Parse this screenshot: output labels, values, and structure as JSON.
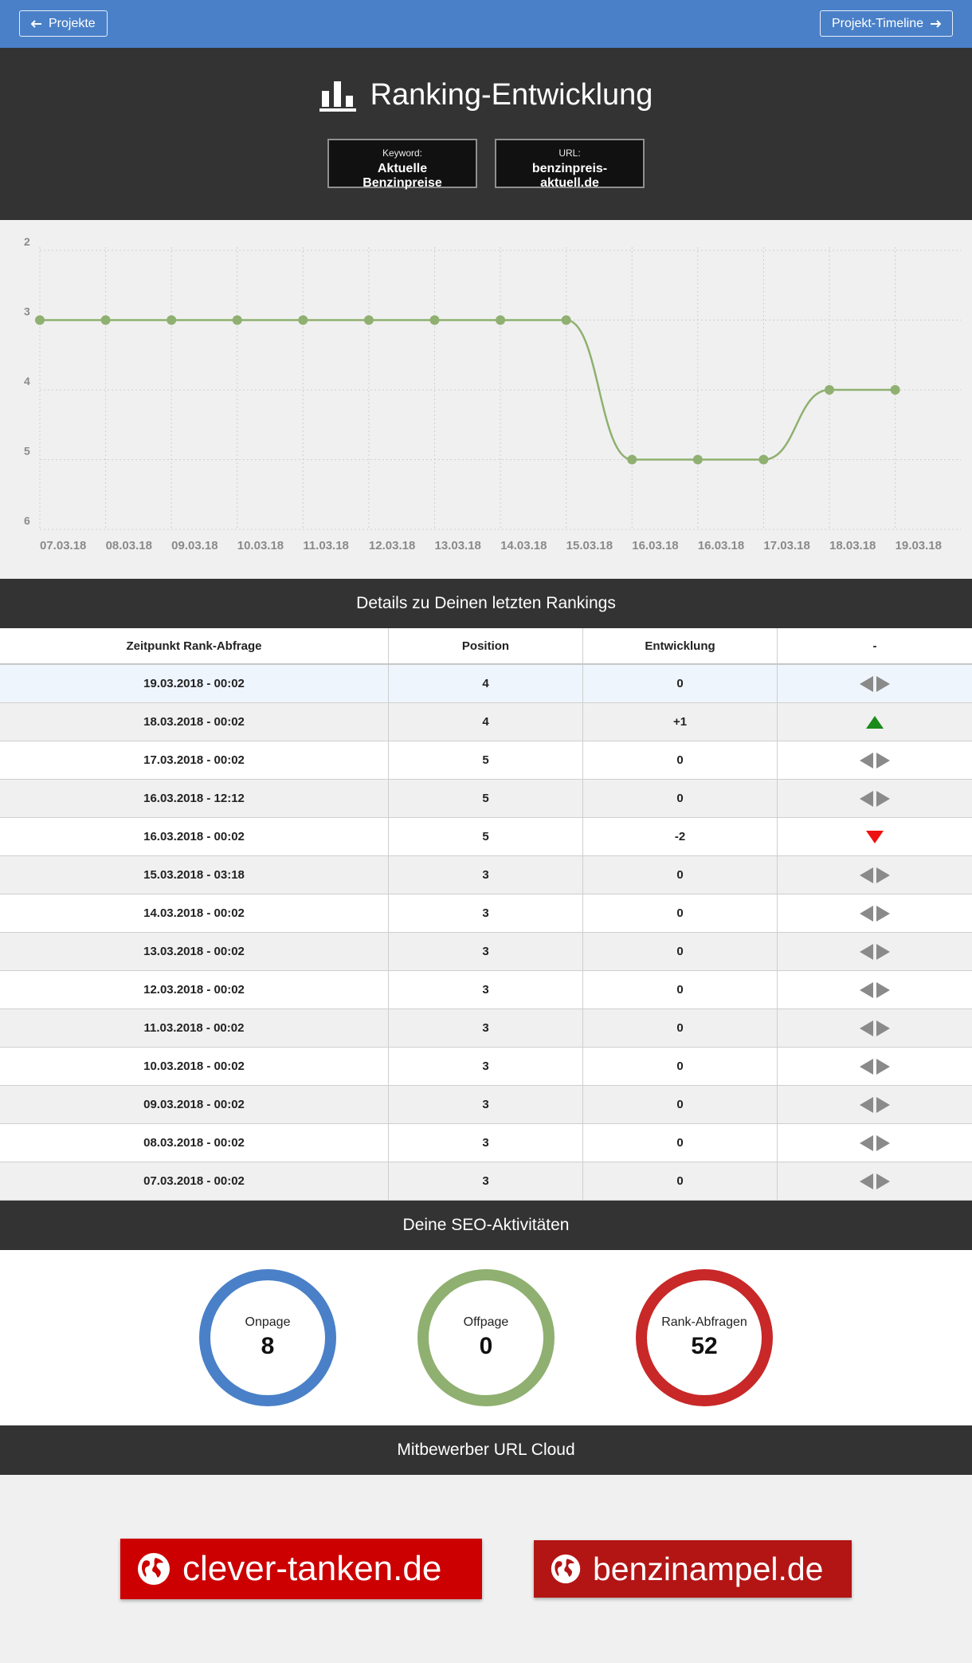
{
  "topbar": {
    "back_label": "Projekte",
    "timeline_label": "Projekt-Timeline"
  },
  "header": {
    "title": "Ranking-Entwicklung",
    "keyword_label": "Keyword:",
    "keyword_value": "Aktuelle Benzinpreise",
    "url_label": "URL:",
    "url_value": "benzinpreis-aktuell.de"
  },
  "chart_data": {
    "type": "line",
    "x": [
      "07.03.18",
      "08.03.18",
      "09.03.18",
      "10.03.18",
      "11.03.18",
      "12.03.18",
      "13.03.18",
      "14.03.18",
      "15.03.18",
      "16.03.18",
      "16.03.18",
      "17.03.18",
      "18.03.18",
      "19.03.18"
    ],
    "series": [
      {
        "values": [
          3,
          3,
          3,
          3,
          3,
          3,
          3,
          3,
          3,
          5,
          5,
          5,
          4,
          4
        ],
        "color": "#8fb070"
      }
    ],
    "yticks": [
      2,
      3,
      4,
      5,
      6
    ],
    "ylim": [
      2,
      6
    ],
    "y_inverted": true,
    "grid": true
  },
  "details": {
    "title": "Details zu Deinen letzten Rankings",
    "columns": [
      "Zeitpunkt Rank-Abfrage",
      "Position",
      "Entwicklung",
      "-"
    ],
    "rows": [
      {
        "time": "19.03.2018 - 00:02",
        "position": "4",
        "change": "0",
        "trend": "neutral"
      },
      {
        "time": "18.03.2018 - 00:02",
        "position": "4",
        "change": "+1",
        "trend": "up"
      },
      {
        "time": "17.03.2018 - 00:02",
        "position": "5",
        "change": "0",
        "trend": "neutral"
      },
      {
        "time": "16.03.2018 - 12:12",
        "position": "5",
        "change": "0",
        "trend": "neutral"
      },
      {
        "time": "16.03.2018 - 00:02",
        "position": "5",
        "change": "-2",
        "trend": "down"
      },
      {
        "time": "15.03.2018 - 03:18",
        "position": "3",
        "change": "0",
        "trend": "neutral"
      },
      {
        "time": "14.03.2018 - 00:02",
        "position": "3",
        "change": "0",
        "trend": "neutral"
      },
      {
        "time": "13.03.2018 - 00:02",
        "position": "3",
        "change": "0",
        "trend": "neutral"
      },
      {
        "time": "12.03.2018 - 00:02",
        "position": "3",
        "change": "0",
        "trend": "neutral"
      },
      {
        "time": "11.03.2018 - 00:02",
        "position": "3",
        "change": "0",
        "trend": "neutral"
      },
      {
        "time": "10.03.2018 - 00:02",
        "position": "3",
        "change": "0",
        "trend": "neutral"
      },
      {
        "time": "09.03.2018 - 00:02",
        "position": "3",
        "change": "0",
        "trend": "neutral"
      },
      {
        "time": "08.03.2018 - 00:02",
        "position": "3",
        "change": "0",
        "trend": "neutral"
      },
      {
        "time": "07.03.2018 - 00:02",
        "position": "3",
        "change": "0",
        "trend": "neutral"
      }
    ]
  },
  "seo": {
    "title": "Deine SEO-Aktivitäten",
    "items": [
      {
        "label": "Onpage",
        "value": "8",
        "color": "#4a80c8"
      },
      {
        "label": "Offpage",
        "value": "0",
        "color": "#8fb070"
      },
      {
        "label": "Rank-Abfragen",
        "value": "52",
        "color": "#c82828"
      }
    ]
  },
  "cloud": {
    "title": "Mitbewerber URL Cloud",
    "urls": [
      {
        "label": "clever-tanken.de",
        "color": "#cc0000"
      },
      {
        "label": "benzinampel.de",
        "color": "#b31515"
      }
    ]
  },
  "icons": {
    "back": "arrow-left-icon",
    "timeline": "arrow-right-icon",
    "title": "bar-chart-icon",
    "url": "globe-icon",
    "trend_up": "triangle-up-icon",
    "trend_down": "triangle-down-icon",
    "trend_neutral": "arrows-left-right-icon"
  }
}
